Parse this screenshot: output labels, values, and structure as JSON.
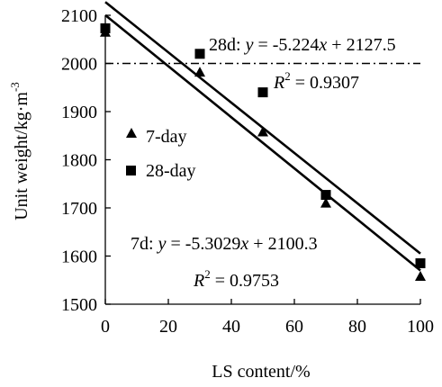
{
  "chart_data": {
    "type": "scatter",
    "xlabel": "LS content/%",
    "ylabel": "Unit weight/kg·m",
    "ylabel_superscript": "-3",
    "xlim": [
      0,
      100
    ],
    "ylim": [
      1500,
      2100
    ],
    "x_ticks": [
      "0",
      "20",
      "40",
      "60",
      "80",
      "100"
    ],
    "y_ticks": [
      "1500",
      "1600",
      "1700",
      "1800",
      "1900",
      "2000",
      "2100"
    ],
    "grid": false,
    "legend_position": "center-left",
    "reference_line": {
      "y": 2000,
      "style": "dash-dot"
    },
    "series": [
      {
        "name": "7-day",
        "marker": "triangle",
        "x": [
          0,
          30,
          50,
          70,
          100
        ],
        "y": [
          2065,
          1982,
          1858,
          1710,
          1558
        ],
        "fit": {
          "slope": -5.3029,
          "intercept": 2100.3
        }
      },
      {
        "name": "28-day",
        "marker": "square",
        "x": [
          0,
          30,
          50,
          70,
          100
        ],
        "y": [
          2073,
          2020,
          1940,
          1727,
          1585
        ],
        "fit": {
          "slope": -5.224,
          "intercept": 2127.5
        }
      }
    ],
    "annotations": {
      "d28_prefix": "28d: ",
      "d28_eq": "= -5.224",
      "d28_tail": " + 2127.5",
      "d28_r2": "= 0.9307",
      "d7_prefix": "7d: ",
      "d7_eq": "= -5.3029",
      "d7_tail": " + 2100.3",
      "d7_r2": "= 0.9753",
      "y_var": "y",
      "x_var": "x",
      "r_var": "R",
      "r_sup": "2"
    }
  }
}
